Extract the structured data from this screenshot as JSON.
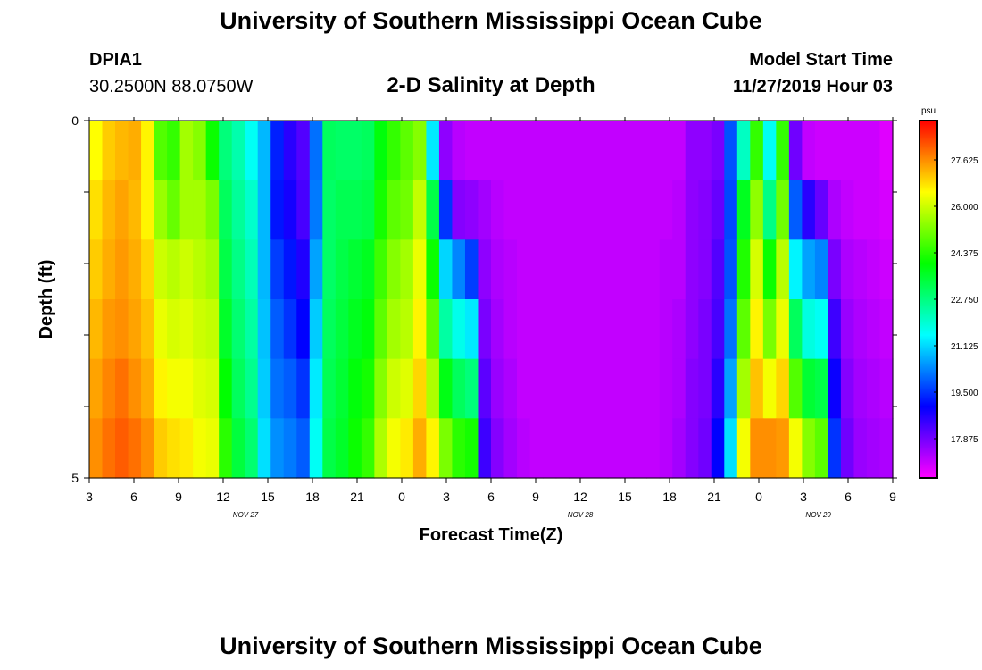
{
  "header": {
    "title": "University of Southern Mississippi Ocean Cube",
    "station_id": "DPIA1",
    "coordinates": "30.2500N 88.0750W",
    "chart_title": "2-D Salinity at Depth",
    "model_start_label": "Model Start Time",
    "model_start_value": "11/27/2019 Hour 03"
  },
  "footer": {
    "title": "University of Southern Mississippi Ocean Cube"
  },
  "chart_data": {
    "type": "heatmap",
    "title": "2-D Salinity at Depth",
    "xlabel": "Forecast Time(Z)",
    "ylabel": "Depth (ft)",
    "colorbar_unit": "psu",
    "x_tick_labels": [
      "3",
      "6",
      "9",
      "12",
      "15",
      "18",
      "21",
      "0",
      "3",
      "6",
      "9",
      "12",
      "15",
      "18",
      "21",
      "0",
      "3",
      "6",
      "9"
    ],
    "x_date_labels": [
      {
        "label": "NOV 27",
        "hour_index": 10.5
      },
      {
        "label": "NOV 28",
        "hour_index": 33
      },
      {
        "label": "NOV 29",
        "hour_index": 49
      }
    ],
    "y_tick_labels": [
      "0",
      "5"
    ],
    "y_range_ft": [
      0,
      5
    ],
    "x_range_hours": [
      0,
      54
    ],
    "colorbar_ticks": [
      "27.625",
      "26.000",
      "24.375",
      "22.750",
      "21.125",
      "19.500",
      "17.875"
    ],
    "color_range_psu": [
      16.5,
      29.0
    ],
    "depth_levels_ft": [
      0,
      1,
      2,
      3,
      4,
      5
    ],
    "salinity_psu_by_depth": [
      [
        26.5,
        27.0,
        27.2,
        27.3,
        26.6,
        24.8,
        24.5,
        25.6,
        25.3,
        24.1,
        22.8,
        22.3,
        21.6,
        20.8,
        19.3,
        18.6,
        18.2,
        20.1,
        23.1,
        23.0,
        23.0,
        23.1,
        23.9,
        24.5,
        24.9,
        25.3,
        21.3,
        17.6,
        17.2,
        17.1,
        17.1,
        17.1,
        17.1,
        17.1,
        17.1,
        17.1,
        17.1,
        17.1,
        17.1,
        17.1,
        17.1,
        17.1,
        17.1,
        17.1,
        17.1,
        17.1,
        17.6,
        17.6,
        17.8,
        19.8,
        22.1,
        24.5,
        21.6,
        24.5,
        17.9,
        17.1,
        17.0,
        17.0,
        17.0,
        17.0,
        17.0,
        16.8
      ],
      [
        26.8,
        27.2,
        27.4,
        27.2,
        26.6,
        25.5,
        25.0,
        25.6,
        25.6,
        25.2,
        23.1,
        22.5,
        22.0,
        20.8,
        19.2,
        18.8,
        18.3,
        20.2,
        23.0,
        23.2,
        23.2,
        23.3,
        24.2,
        24.9,
        25.1,
        25.9,
        23.3,
        19.5,
        17.7,
        17.6,
        17.4,
        17.2,
        17.1,
        17.1,
        17.1,
        17.1,
        17.1,
        17.1,
        17.1,
        17.1,
        17.1,
        17.1,
        17.1,
        17.1,
        17.1,
        17.2,
        17.6,
        17.7,
        18.0,
        19.7,
        23.7,
        25.4,
        22.7,
        25.1,
        19.9,
        18.6,
        18.0,
        17.3,
        17.1,
        17.0,
        17.0,
        16.9
      ],
      [
        27.0,
        27.3,
        27.5,
        27.3,
        26.9,
        26.0,
        25.8,
        26.0,
        25.8,
        25.6,
        23.3,
        22.7,
        22.2,
        20.8,
        19.6,
        19.2,
        18.7,
        20.6,
        23.0,
        23.3,
        23.5,
        23.7,
        24.6,
        25.3,
        25.6,
        26.3,
        24.1,
        21.1,
        20.3,
        19.6,
        17.6,
        17.3,
        17.2,
        17.1,
        17.1,
        17.1,
        17.1,
        17.1,
        17.1,
        17.1,
        17.1,
        17.1,
        17.1,
        17.1,
        17.2,
        17.2,
        17.6,
        17.7,
        18.2,
        19.8,
        24.3,
        26.1,
        24.1,
        25.8,
        21.4,
        20.6,
        20.3,
        17.8,
        17.3,
        17.2,
        17.1,
        17.0
      ],
      [
        27.2,
        27.5,
        27.6,
        27.4,
        27.1,
        26.3,
        26.1,
        26.2,
        26.0,
        25.9,
        23.6,
        22.9,
        22.4,
        20.9,
        19.9,
        19.5,
        19.0,
        21.0,
        23.1,
        23.4,
        23.7,
        23.9,
        24.9,
        25.6,
        25.8,
        26.6,
        24.9,
        22.4,
        21.7,
        21.3,
        17.8,
        17.4,
        17.2,
        17.1,
        17.1,
        17.1,
        17.1,
        17.1,
        17.1,
        17.1,
        17.1,
        17.1,
        17.1,
        17.1,
        17.2,
        17.3,
        17.6,
        17.8,
        18.3,
        20.1,
        24.9,
        26.6,
        25.2,
        26.3,
        23.1,
        21.8,
        21.6,
        18.4,
        17.5,
        17.3,
        17.2,
        17.1
      ],
      [
        27.4,
        27.7,
        27.9,
        27.6,
        27.3,
        26.6,
        26.4,
        26.4,
        26.2,
        26.1,
        24.0,
        23.1,
        22.6,
        21.0,
        20.1,
        19.9,
        19.5,
        21.3,
        23.2,
        23.5,
        23.9,
        24.2,
        25.3,
        26.0,
        26.2,
        26.9,
        25.7,
        23.8,
        23.1,
        22.8,
        18.1,
        17.5,
        17.3,
        17.1,
        17.1,
        17.1,
        17.1,
        17.1,
        17.1,
        17.1,
        17.1,
        17.1,
        17.1,
        17.1,
        17.2,
        17.3,
        17.7,
        17.8,
        18.6,
        20.6,
        25.6,
        27.1,
        26.4,
        26.9,
        24.8,
        23.5,
        23.3,
        18.9,
        17.7,
        17.4,
        17.3,
        17.2
      ],
      [
        27.6,
        27.9,
        28.1,
        27.9,
        27.6,
        27.0,
        26.8,
        26.7,
        26.4,
        26.3,
        24.4,
        23.4,
        22.9,
        21.2,
        20.4,
        20.2,
        19.9,
        21.6,
        23.3,
        23.6,
        24.1,
        24.5,
        25.7,
        26.4,
        26.7,
        27.3,
        26.6,
        25.2,
        24.4,
        24.2,
        18.4,
        17.7,
        17.4,
        17.2,
        17.1,
        17.1,
        17.1,
        17.1,
        17.1,
        17.1,
        17.1,
        17.1,
        17.1,
        17.1,
        17.2,
        17.4,
        17.7,
        17.9,
        19.0,
        21.2,
        26.4,
        27.6,
        27.6,
        27.5,
        26.4,
        25.3,
        24.9,
        19.5,
        17.9,
        17.5,
        17.4,
        17.3
      ]
    ]
  }
}
